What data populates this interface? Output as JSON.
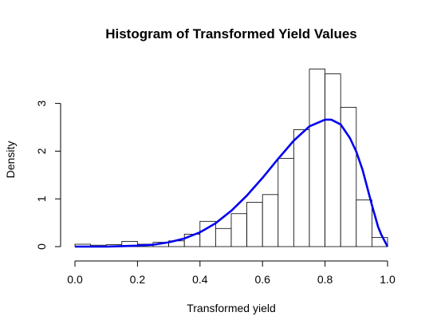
{
  "chart_data": {
    "type": "bar",
    "title": "Histogram of Transformed Yield Values",
    "xlabel": "Transformed yield",
    "ylabel": "Density",
    "xlim": [
      0,
      1
    ],
    "ylim": [
      0,
      4
    ],
    "x_ticks": [
      "0.0",
      "0.2",
      "0.4",
      "0.6",
      "0.8",
      "1.0"
    ],
    "y_ticks": [
      "0",
      "1",
      "2",
      "3"
    ],
    "grid": false,
    "bin_width": 0.05,
    "bins": [
      {
        "start": 0.0,
        "end": 0.05,
        "density": 0.05
      },
      {
        "start": 0.05,
        "end": 0.1,
        "density": 0.03
      },
      {
        "start": 0.1,
        "end": 0.15,
        "density": 0.04
      },
      {
        "start": 0.15,
        "end": 0.2,
        "density": 0.11
      },
      {
        "start": 0.2,
        "end": 0.25,
        "density": 0.05
      },
      {
        "start": 0.25,
        "end": 0.3,
        "density": 0.09
      },
      {
        "start": 0.3,
        "end": 0.35,
        "density": 0.12
      },
      {
        "start": 0.35,
        "end": 0.4,
        "density": 0.26
      },
      {
        "start": 0.4,
        "end": 0.45,
        "density": 0.53
      },
      {
        "start": 0.45,
        "end": 0.5,
        "density": 0.38
      },
      {
        "start": 0.5,
        "end": 0.55,
        "density": 0.69
      },
      {
        "start": 0.55,
        "end": 0.6,
        "density": 0.93
      },
      {
        "start": 0.6,
        "end": 0.65,
        "density": 1.09
      },
      {
        "start": 0.65,
        "end": 0.7,
        "density": 1.85
      },
      {
        "start": 0.7,
        "end": 0.75,
        "density": 2.45
      },
      {
        "start": 0.75,
        "end": 0.8,
        "density": 3.72
      },
      {
        "start": 0.8,
        "end": 0.85,
        "density": 3.62
      },
      {
        "start": 0.85,
        "end": 0.9,
        "density": 2.92
      },
      {
        "start": 0.9,
        "end": 0.95,
        "density": 0.98
      },
      {
        "start": 0.95,
        "end": 1.0,
        "density": 0.19
      }
    ],
    "density_curve": {
      "type": "line",
      "color": "#0000ee",
      "points": [
        [
          0.0,
          0.0
        ],
        [
          0.05,
          0.0
        ],
        [
          0.1,
          0.0
        ],
        [
          0.15,
          0.01
        ],
        [
          0.2,
          0.02
        ],
        [
          0.25,
          0.04
        ],
        [
          0.3,
          0.09
        ],
        [
          0.35,
          0.17
        ],
        [
          0.4,
          0.3
        ],
        [
          0.45,
          0.49
        ],
        [
          0.5,
          0.75
        ],
        [
          0.55,
          1.07
        ],
        [
          0.6,
          1.44
        ],
        [
          0.65,
          1.84
        ],
        [
          0.7,
          2.22
        ],
        [
          0.75,
          2.52
        ],
        [
          0.8,
          2.66
        ],
        [
          0.82,
          2.66
        ],
        [
          0.85,
          2.56
        ],
        [
          0.88,
          2.27
        ],
        [
          0.9,
          1.99
        ],
        [
          0.92,
          1.61
        ],
        [
          0.95,
          0.87
        ],
        [
          0.97,
          0.41
        ],
        [
          0.98,
          0.25
        ],
        [
          1.0,
          0.0
        ]
      ]
    }
  }
}
